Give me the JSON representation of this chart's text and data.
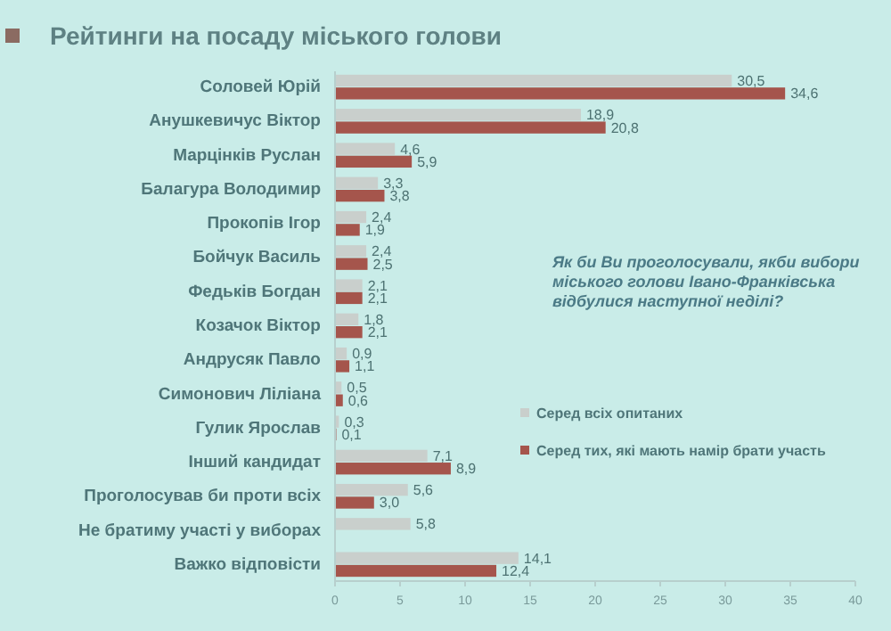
{
  "chart_data": {
    "type": "bar",
    "orientation": "horizontal",
    "title": "Рейтинги на посаду міського голови",
    "categories": [
      "Соловей Юрій",
      "Анушкевичус Віктор",
      "Марцінків Руслан",
      "Балагура Володимир",
      "Прокопів Ігор",
      "Бойчук Василь",
      "Федьків Богдан",
      "Козачок Віктор",
      "Андрусяк Павло",
      "Симонович Ліліана",
      "Гулик Ярослав",
      "Інший кандидат",
      "Проголосував би проти всіх",
      "Не братиму участі у виборах",
      "Важко відповісти"
    ],
    "series": [
      {
        "name": "Серед всіх опитаних",
        "color": "#c9cfcc",
        "values": [
          30.5,
          18.9,
          4.6,
          3.3,
          2.4,
          2.4,
          2.1,
          1.8,
          0.9,
          0.5,
          0.3,
          7.1,
          5.6,
          5.8,
          14.1
        ],
        "value_labels": [
          "30,5",
          "18,9",
          "4,6",
          "3,3",
          "2,4",
          "2,4",
          "2,1",
          "1,8",
          "0,9",
          "0,5",
          "0,3",
          "7,1",
          "5,6",
          "5,8",
          "14,1"
        ]
      },
      {
        "name": "Серед тих, які мають намір брати участь",
        "color": "#a5554c",
        "values": [
          34.6,
          20.8,
          5.9,
          3.8,
          1.9,
          2.5,
          2.1,
          2.1,
          1.1,
          0.6,
          0.1,
          8.9,
          3.0,
          null,
          12.4
        ],
        "value_labels": [
          "34,6",
          "20,8",
          "5,9",
          "3,8",
          "1,9",
          "2,5",
          "2,1",
          "2,1",
          "1,1",
          "0,6",
          "0,1",
          "8,9",
          "3,0",
          null,
          "12,4"
        ]
      }
    ],
    "xlim": [
      0,
      40
    ],
    "xticks": [
      0,
      5,
      10,
      15,
      20,
      25,
      30,
      35,
      40
    ],
    "grid": false,
    "legend": "right",
    "annotations": [
      "Як би Ви проголосували, якби вибори міського голови Івано-Франківська відбулися наступної неділі?"
    ]
  }
}
